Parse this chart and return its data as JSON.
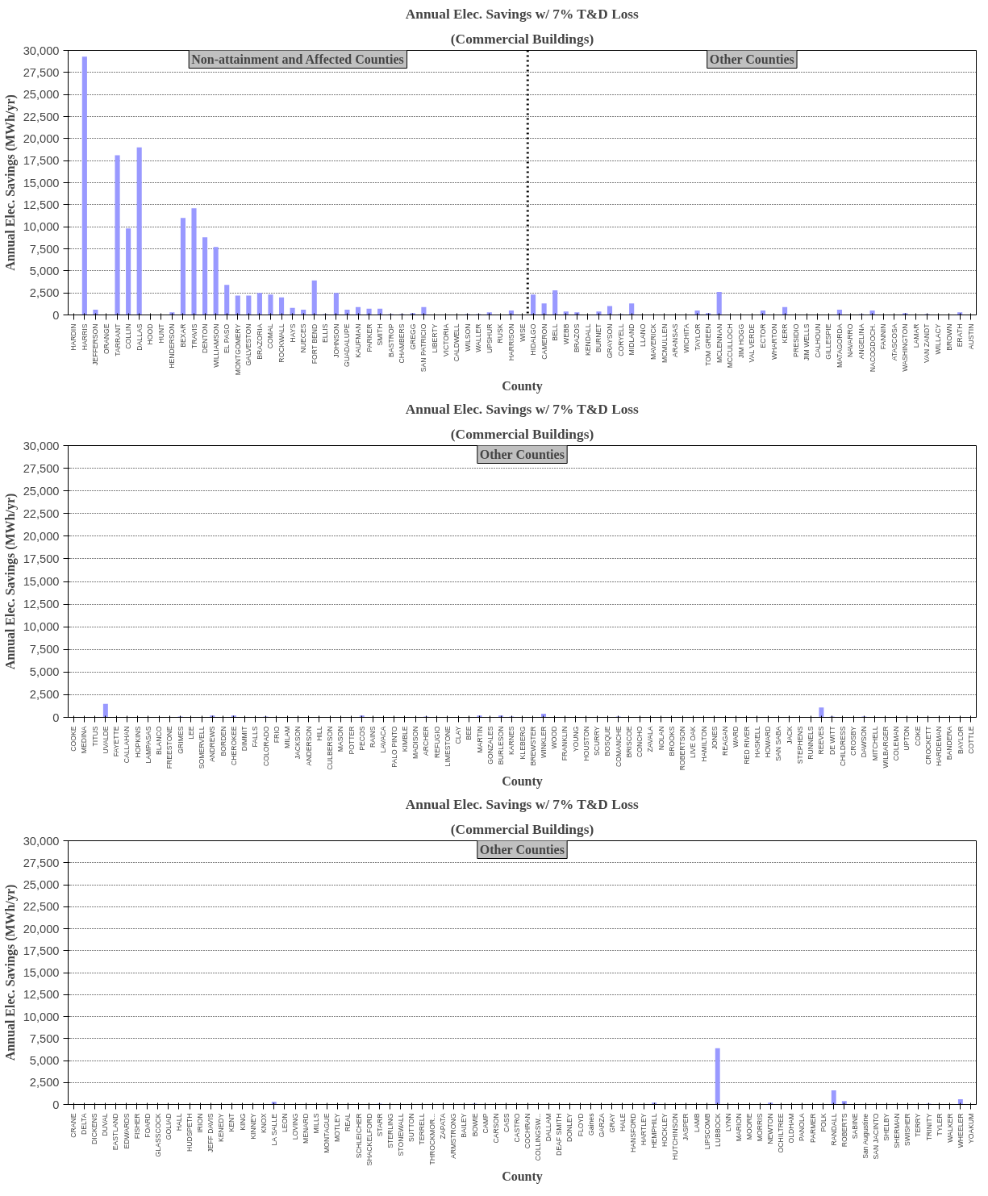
{
  "chart_data": [
    {
      "type": "bar",
      "title": "Annual Elec. Savings w/ 7% T&D Loss",
      "subtitle": "(Commercial Buildings)",
      "xlabel": "County",
      "ylabel": "Annual Elec. Savings (MWh/yr)",
      "color": "#9999ff",
      "grid": "y",
      "ylim": [
        0,
        30000
      ],
      "yticks": [
        {
          "value": 0,
          "label": "0"
        },
        {
          "value": 2500,
          "label": "2,500"
        },
        {
          "value": 5000,
          "label": "5,000"
        },
        {
          "value": 7500,
          "label": "7,500"
        },
        {
          "value": 10000,
          "label": "10,000"
        },
        {
          "value": 12500,
          "label": "12,500"
        },
        {
          "value": 15000,
          "label": "15,000"
        },
        {
          "value": 17500,
          "label": "17,500"
        },
        {
          "value": 20000,
          "label": "20,000"
        },
        {
          "value": 22500,
          "label": "22,500"
        },
        {
          "value": 25000,
          "label": "25,000"
        },
        {
          "value": 27500,
          "label": "27,500"
        },
        {
          "value": 30000,
          "label": "30,000"
        }
      ],
      "categories": [
        "HARDIN",
        "HARRIS",
        "JEFFERSON",
        "ORANGE",
        "TARRANT",
        "COLLIN",
        "DALLAS",
        "HOOD",
        "HUNT",
        "HENDERSON",
        "BEXAR",
        "TRAVIS",
        "DENTON",
        "WILLIAMSON",
        "EL PASO",
        "MONTGOMERY",
        "GALVESTON",
        "BRAZORIA",
        "COMAL",
        "ROCKWALL",
        "HAYS",
        "NUECES",
        "FORT BEND",
        "ELLIS",
        "JOHNSON",
        "GUADALUPE",
        "KAUFMAN",
        "PARKER",
        "SMITH",
        "BASTROP",
        "CHAMBERS",
        "GREGG",
        "SAN PATRICIO",
        "LIBERTY",
        "VICTORIA",
        "CALDWELL",
        "WILSON",
        "WALLER",
        "UPSHUR",
        "RUSK",
        "HARRISON",
        "WISE",
        "HIDALGO",
        "CAMERON",
        "BELL",
        "WEBB",
        "BRAZOS",
        "KENDALL",
        "BURNET",
        "GRAYSON",
        "CORYELL",
        "MIDLAND",
        "LLANO",
        "MAVERICK",
        "MCMULLEN",
        "ARANSAS",
        "WICHITA",
        "TAYLOR",
        "TOM GREEN",
        "MCLENNAN",
        "MCCULLOCH",
        "JIM HOGG",
        "VAL VERDE",
        "ECTOR",
        "WHARTON",
        "KERR",
        "PRESIDIO",
        "JIM WELLS",
        "CALHOUN",
        "GILLESPIE",
        "MATAGORDA",
        "NAVARRO",
        "ANGELINA",
        "NACOGDOCH.",
        "FANNIN",
        "ATASCOSA",
        "WASHINGTON",
        "LAMAR",
        "VAN ZANDT",
        "WILLACY",
        "BROWN",
        "ERATH",
        "AUSTIN"
      ],
      "values": [
        0,
        29300,
        600,
        0,
        18100,
        9800,
        19000,
        0,
        0,
        300,
        11000,
        12100,
        8800,
        7700,
        3400,
        2200,
        2200,
        2500,
        2300,
        2000,
        800,
        600,
        3900,
        100,
        2500,
        600,
        900,
        700,
        700,
        100,
        100,
        200,
        900,
        0,
        0,
        0,
        100,
        100,
        300,
        0,
        500,
        0,
        2300,
        1300,
        2800,
        400,
        300,
        0,
        400,
        1000,
        100,
        1300,
        0,
        0,
        0,
        0,
        0,
        500,
        200,
        2600,
        0,
        0,
        0,
        500,
        0,
        900,
        0,
        0,
        0,
        0,
        600,
        0,
        100,
        500,
        0,
        0,
        200,
        0,
        100,
        0,
        0,
        300,
        0
      ],
      "ref_lines": [
        {
          "axis": "x",
          "value": "HIDALGO",
          "line_style": "dotted"
        }
      ],
      "annotations": [
        "Non-attainment and Affected Counties",
        "Other Counties"
      ]
    },
    {
      "type": "bar",
      "title": "Annual Elec. Savings w/ 7% T&D Loss",
      "subtitle": "(Commercial Buildings)",
      "xlabel": "County",
      "ylabel": "Annual Elec. Savings (MWh/yr)",
      "color": "#9999ff",
      "grid": "y",
      "ylim": [
        0,
        30000
      ],
      "yticks": [
        {
          "value": 0,
          "label": "0"
        },
        {
          "value": 2500,
          "label": "2,500"
        },
        {
          "value": 5000,
          "label": "5,000"
        },
        {
          "value": 7500,
          "label": "7,500"
        },
        {
          "value": 10000,
          "label": "10,000"
        },
        {
          "value": 12500,
          "label": "12,500"
        },
        {
          "value": 15000,
          "label": "15,000"
        },
        {
          "value": 17500,
          "label": "17,500"
        },
        {
          "value": 20000,
          "label": "20,000"
        },
        {
          "value": 22500,
          "label": "22,500"
        },
        {
          "value": 25000,
          "label": "25,000"
        },
        {
          "value": 27500,
          "label": "27,500"
        },
        {
          "value": 30000,
          "label": "30,000"
        }
      ],
      "categories": [
        "COOKE",
        "MEDINA",
        "TITUS",
        "UVALDE",
        "FAYETTE",
        "CALLAHAN",
        "HOPKINS",
        "LAMPASAS",
        "BLANCO",
        "FREESTONE",
        "GRIMES",
        "LEE",
        "SOMERVELL",
        "ANDREWS",
        "BORDEN",
        "CHEROKEE",
        "DIMMIT",
        "FALLS",
        "COLORADO",
        "FRIO",
        "MILAM",
        "JACKSON",
        "ANDERSON",
        "HILL",
        "CULBERSON",
        "MASON",
        "POTTER",
        "PECOS",
        "RAINS",
        "LAVACA",
        "PALO PINTO",
        "KIMBLE",
        "MADISON",
        "ARCHER",
        "REFUGIO",
        "LIMESTONE",
        "CLAY",
        "BEE",
        "MARTIN",
        "GONZALES",
        "BURLESON",
        "KARNES",
        "KLEBERG",
        "BREWSTER",
        "WINKLER",
        "WOOD",
        "FRANKLIN",
        "YOUNG",
        "HOUSTON",
        "SCURRY",
        "BOSQUE",
        "COMANCHE",
        "BRISCOE",
        "CONCHO",
        "ZAVALA",
        "NOLAN",
        "BROOKS",
        "ROBERTSON",
        "LIVE OAK",
        "HAMILTON",
        "JONES",
        "REAGAN",
        "WARD",
        "RED RIVER",
        "HASKELL",
        "HOWARD",
        "SAN SABA",
        "JACK",
        "STEPHENS",
        "RUNNELS",
        "REEVES",
        "DE WITT",
        "CHILDRESS",
        "CROSBY",
        "DAWSON",
        "MITCHELL",
        "WILBARGER",
        "COLEMAN",
        "UPTON",
        "COKE",
        "CROCKETT",
        "HARDEMAN",
        "BANDERA",
        "BAYLOR",
        "COTTLE"
      ],
      "values": [
        0,
        0,
        0,
        1500,
        0,
        0,
        0,
        0,
        0,
        0,
        100,
        0,
        0,
        200,
        0,
        200,
        0,
        0,
        100,
        0,
        0,
        0,
        0,
        0,
        0,
        0,
        0,
        200,
        0,
        0,
        0,
        0,
        0,
        100,
        0,
        0,
        0,
        0,
        200,
        0,
        200,
        100,
        0,
        0,
        400,
        0,
        0,
        0,
        0,
        0,
        0,
        100,
        0,
        0,
        0,
        0,
        0,
        0,
        0,
        0,
        0,
        0,
        0,
        0,
        0,
        0,
        0,
        0,
        0,
        0,
        1100,
        100,
        0,
        0,
        100,
        0,
        0,
        0,
        0,
        0,
        0,
        0,
        0,
        0,
        0
      ],
      "annotations": [
        "Other Counties"
      ]
    },
    {
      "type": "bar",
      "title": "Annual Elec. Savings w/ 7% T&D Loss",
      "subtitle": "(Commercial Buildings)",
      "xlabel": "County",
      "ylabel": "Annual Elec. Savings (MWh/yr)",
      "color": "#9999ff",
      "grid": "y",
      "ylim": [
        0,
        30000
      ],
      "yticks": [
        {
          "value": 0,
          "label": "0"
        },
        {
          "value": 2500,
          "label": "2,500"
        },
        {
          "value": 5000,
          "label": "5,000"
        },
        {
          "value": 7500,
          "label": "7,500"
        },
        {
          "value": 10000,
          "label": "10,000"
        },
        {
          "value": 12500,
          "label": "12,500"
        },
        {
          "value": 15000,
          "label": "15,000"
        },
        {
          "value": 17500,
          "label": "17,500"
        },
        {
          "value": 20000,
          "label": "20,000"
        },
        {
          "value": 22500,
          "label": "22,500"
        },
        {
          "value": 25000,
          "label": "25,000"
        },
        {
          "value": 27500,
          "label": "27,500"
        },
        {
          "value": 30000,
          "label": "30,000"
        }
      ],
      "categories": [
        "CRANE",
        "DELTA",
        "DICKENS",
        "DUVAL",
        "EASTLAND",
        "EDWARDS",
        "FISHER",
        "FOARD",
        "GLASSCOCK",
        "GOLIAD",
        "HALL",
        "HUDSPETH",
        "IRION",
        "JEFF DAVIS",
        "KENEDY",
        "KENT",
        "KING",
        "KINNEY",
        "KNOX",
        "LA SALLE",
        "LEON",
        "LOVING",
        "MENARD",
        "MILLS",
        "MONTAGUE",
        "MOTLEY",
        "REAL",
        "SCHLEICHER",
        "SHACKELFORD",
        "STARR",
        "STERLING",
        "STONEWALL",
        "SUTTON",
        "TERRELL",
        "THROCKMOR...",
        "ZAPATA",
        "ARMSTRONG",
        "BAILEY",
        "BOWIE",
        "CAMP",
        "CARSON",
        "CASS",
        "CASTRO",
        "COCHRAN",
        "COLLINGSW...",
        "DALLAM",
        "DEAF SMITH",
        "DONLEY",
        "FLOYD",
        "Gaines",
        "GARZA",
        "GRAY",
        "HALE",
        "HANSFORD",
        "HARTLEY",
        "HEMPHILL",
        "HOCKLEY",
        "HUTCHINSON",
        "JASPER",
        "LAMB",
        "LIPSCOMB",
        "LUBBOCK",
        "LYNN",
        "MARION",
        "MOORE",
        "MORRIS",
        "NEWTON",
        "OCHILTREE",
        "OLDHAM",
        "PANOLA",
        "PARMER",
        "POLK",
        "RANDALL",
        "ROBERTS",
        "SABINE",
        "San Augustine",
        "SAN JACINTO",
        "SHELBY",
        "SHERMAN",
        "SWISHER",
        "TERRY",
        "TRINITY",
        "TYLER",
        "WALKER",
        "WHEELER",
        "YOAKUM"
      ],
      "values": [
        0,
        0,
        0,
        0,
        0,
        0,
        0,
        0,
        0,
        0,
        0,
        0,
        0,
        0,
        0,
        0,
        0,
        0,
        0,
        300,
        0,
        0,
        0,
        0,
        0,
        0,
        0,
        0,
        0,
        100,
        0,
        0,
        0,
        0,
        0,
        0,
        0,
        0,
        100,
        0,
        0,
        0,
        0,
        0,
        0,
        0,
        0,
        0,
        0,
        0,
        0,
        0,
        0,
        0,
        0,
        200,
        0,
        0,
        0,
        0,
        0,
        6400,
        0,
        0,
        0,
        0,
        200,
        0,
        0,
        0,
        0,
        0,
        1600,
        400,
        0,
        0,
        0,
        0,
        0,
        0,
        0,
        100,
        0,
        0,
        600,
        0
      ],
      "annotations": [
        "Other Counties"
      ]
    }
  ]
}
